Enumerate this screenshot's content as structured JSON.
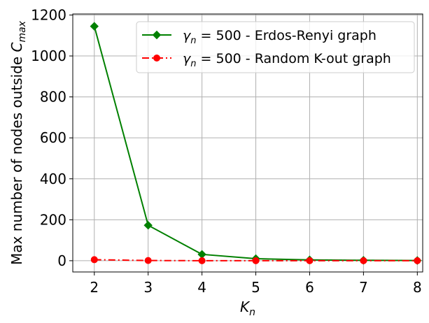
{
  "chart_data": {
    "type": "line",
    "xlabel": {
      "base": "K",
      "sub": "n"
    },
    "ylabel": {
      "text": "Max number of nodes outside ",
      "base": "C",
      "sub": "max"
    },
    "xlim": [
      1.6,
      8.1
    ],
    "ylim": [
      -55,
      1205
    ],
    "xticks": [
      2,
      3,
      4,
      5,
      6,
      7,
      8
    ],
    "yticks": [
      0,
      200,
      400,
      600,
      800,
      1000,
      1200
    ],
    "grid": true,
    "legend_position": "top-right",
    "x": [
      2,
      3,
      4,
      5,
      6,
      7,
      8
    ],
    "series": [
      {
        "name": "Erdos-Renyi graph",
        "legend_math": {
          "base": "γ",
          "sub": "n",
          "value": " = 500",
          "rest": " - Erdos-Renyi graph"
        },
        "values": [
          1145,
          173,
          31,
          10,
          4,
          2,
          1
        ],
        "color": "#008000",
        "marker": "diamond",
        "linestyle": "solid"
      },
      {
        "name": "Random K-out graph",
        "legend_math": {
          "base": "γ",
          "sub": "n",
          "value": " = 500",
          "rest": " - Random K-out graph"
        },
        "values": [
          5,
          1,
          0,
          0,
          0,
          0,
          0
        ],
        "color": "#ff0000",
        "marker": "circle",
        "linestyle": "dashdot"
      }
    ]
  }
}
